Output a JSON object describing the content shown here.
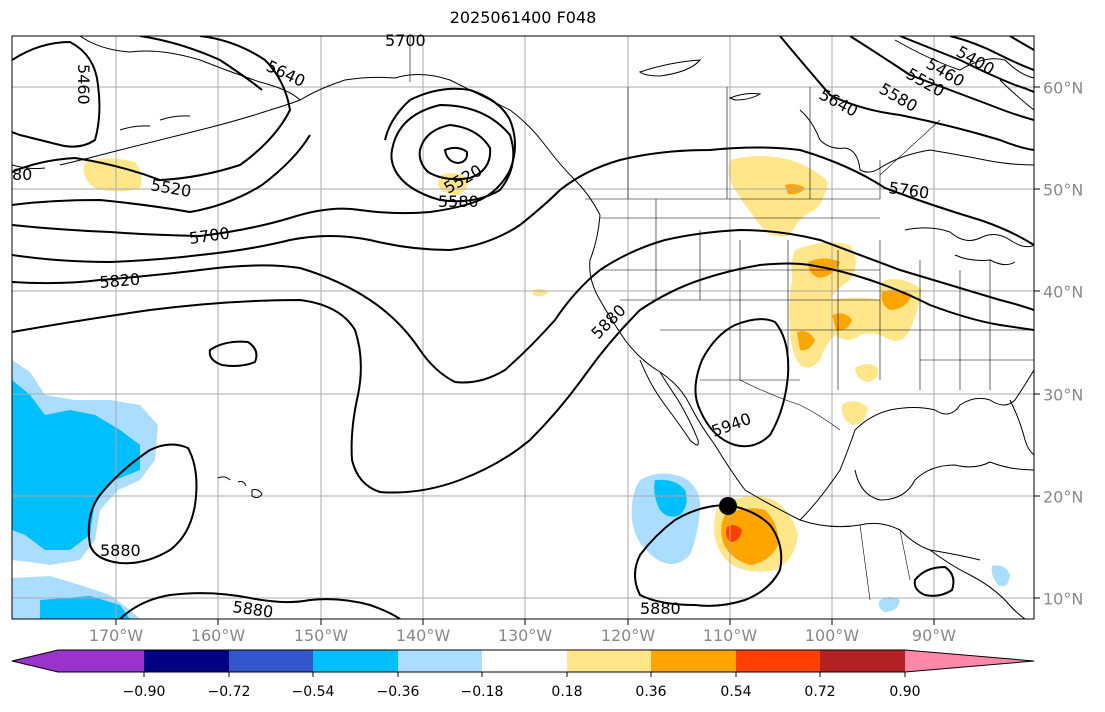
{
  "title": "2025061400 F048",
  "longitude_labels": [
    "170°W",
    "160°W",
    "150°W",
    "140°W",
    "130°W",
    "120°W",
    "110°W",
    "100°W",
    "90°W"
  ],
  "latitude_labels": [
    "60°N",
    "50°N",
    "40°N",
    "30°N",
    "20°N",
    "10°N"
  ],
  "contour_labels": [
    "5700",
    "5640",
    "5460",
    "5520",
    "5580",
    "5520",
    "5700",
    "5820",
    "5880",
    "5940",
    "5880",
    "5880",
    "5880",
    "5640",
    "5580",
    "5520",
    "5460",
    "5400",
    "5760",
    "80"
  ],
  "colorbar": {
    "tick_labels": [
      "−0.90",
      "−0.72",
      "−0.54",
      "−0.36",
      "−0.18",
      "0.18",
      "0.36",
      "0.54",
      "0.72",
      "0.90"
    ],
    "colors": [
      "#9933cc",
      "#000080",
      "#3355cc",
      "#00bfff",
      "#aaddff",
      "#ffffff",
      "#ffe68a",
      "#ffa500",
      "#ff4000",
      "#b22222",
      "#ff88aa"
    ]
  },
  "marker": {
    "description": "black dot",
    "lon": "110°W",
    "lat": "19°N"
  }
}
